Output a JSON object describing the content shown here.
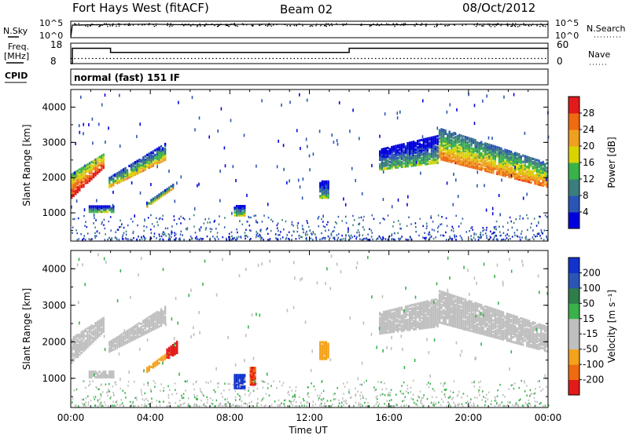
{
  "header": {
    "station": "Fort Hays West (fitACF)",
    "beam": "Beam 02",
    "date": "08/Oct/2012"
  },
  "side_labels": {
    "nsky": "N.Sky",
    "nsearch": "N.Search",
    "freq_line1": "Freq.",
    "freq_line2": "[MHz]",
    "nave": "Nave",
    "cpid": "CPID",
    "mode": "normal (fast) 151 IF"
  },
  "colors": {
    "axis": "#000000",
    "power_scale": [
      "#0000dd",
      "#2a55b4",
      "#3c7d7d",
      "#39b24a",
      "#d9d400",
      "#f0a020",
      "#ef6a10",
      "#e31a1a"
    ],
    "velocity_scale": [
      "#e31a1a",
      "#ef6a10",
      "#f5a21b",
      "#bfbfbf",
      "#bfbfbf",
      "#39b24a",
      "#2e7d4a",
      "#2a55b4",
      "#1133cc"
    ]
  },
  "chart_data": [
    {
      "type": "line",
      "name": "nsky-nsearch",
      "x_unit": "hours UT",
      "ylabel_left": "N.Sky",
      "ylabel_right": "N.Search",
      "yticks_left": [
        "10^5",
        "10^0"
      ],
      "yticks_right": [
        "10^5",
        "10^0"
      ],
      "series": [
        {
          "name": "N.Sky",
          "x": [
            0,
            0.08,
            1,
            2,
            4,
            6,
            8,
            10,
            12,
            14,
            16,
            18,
            20,
            22,
            24
          ],
          "y": [
            0,
            3.8,
            3.9,
            4.0,
            4.1,
            3.9,
            4.0,
            4.1,
            4.0,
            4.0,
            3.9,
            4.0,
            4.1,
            4.0,
            4.0
          ]
        }
      ]
    },
    {
      "type": "line",
      "name": "freq-nave",
      "x_unit": "hours UT",
      "ylabel_left": "Freq. [MHz]",
      "ylabel_right": "Nave",
      "yticks_left": [
        "18",
        "8"
      ],
      "yticks_right": [
        "60",
        "0"
      ],
      "series": [
        {
          "name": "Freq.",
          "x": [
            0,
            0.08,
            0.08,
            2.0,
            2.0,
            14.0,
            14.0,
            24
          ],
          "y": [
            8,
            8,
            15.5,
            15.5,
            13.5,
            13.5,
            15.5,
            15.5
          ]
        },
        {
          "name": "Nave",
          "x": [
            0,
            24
          ],
          "y": [
            15,
            15
          ]
        }
      ]
    },
    {
      "type": "heatmap",
      "name": "power",
      "ylabel": "Slant Range [km]",
      "yticks": [
        "1000",
        "2000",
        "3000",
        "4000"
      ],
      "ylim": [
        200,
        4500
      ],
      "colorbar_label": "Power [dB]",
      "colorbar_ticks": [
        "4",
        "8",
        "12",
        "16",
        "20",
        "24",
        "28"
      ],
      "colorbar_range": [
        0,
        32
      ],
      "bands": [
        {
          "x": [
            0,
            1.7
          ],
          "r0": [
            1400,
            2300
          ],
          "r1": [
            2100,
            2700
          ],
          "value": 22
        },
        {
          "x": [
            1.9,
            4.8
          ],
          "r0": [
            1700,
            2500
          ],
          "r1": [
            2000,
            3000
          ],
          "value": 12
        },
        {
          "x": [
            3.8,
            5.2
          ],
          "r0": [
            1150,
            1700
          ],
          "r1": [
            1300,
            1850
          ],
          "value": 10
        },
        {
          "x": [
            0.9,
            2.2
          ],
          "r0": [
            1000,
            1000
          ],
          "r1": [
            1200,
            1200
          ],
          "value": 6
        },
        {
          "x": [
            8.2,
            8.8
          ],
          "r0": [
            900,
            900
          ],
          "r1": [
            1200,
            1200
          ],
          "value": 8
        },
        {
          "x": [
            12.5,
            13.0
          ],
          "r0": [
            1400,
            1400
          ],
          "r1": [
            1900,
            1900
          ],
          "value": 6
        },
        {
          "x": [
            18.5,
            24
          ],
          "r0": [
            2500,
            1700
          ],
          "r1": [
            3400,
            2400
          ],
          "value": 16
        },
        {
          "x": [
            15.5,
            18.5
          ],
          "r0": [
            2200,
            2400
          ],
          "r1": [
            2800,
            3200
          ],
          "value": 6
        }
      ]
    },
    {
      "type": "heatmap",
      "name": "velocity",
      "ylabel": "Slant Range [km]",
      "yticks": [
        "1000",
        "2000",
        "3000",
        "4000"
      ],
      "ylim": [
        200,
        4500
      ],
      "colorbar_label": "Velocity [m s⁻¹]",
      "colorbar_ticks": [
        "-200",
        "-100",
        "-50",
        "-15",
        "15",
        "50",
        "100",
        "200"
      ],
      "colorbar_range": [
        -250,
        250
      ],
      "bands": [
        {
          "x": [
            0,
            1.7
          ],
          "r0": [
            1400,
            2300
          ],
          "r1": [
            2100,
            2700
          ],
          "value": 0
        },
        {
          "x": [
            1.9,
            4.8
          ],
          "r0": [
            1700,
            2500
          ],
          "r1": [
            2000,
            3000
          ],
          "value": 0
        },
        {
          "x": [
            3.8,
            5.2
          ],
          "r0": [
            1150,
            1700
          ],
          "r1": [
            1300,
            1850
          ],
          "value": -60
        },
        {
          "x": [
            4.8,
            5.4
          ],
          "r0": [
            1500,
            1700
          ],
          "r1": [
            1800,
            2050
          ],
          "value": -220
        },
        {
          "x": [
            0.9,
            2.2
          ],
          "r0": [
            1000,
            1000
          ],
          "r1": [
            1200,
            1200
          ],
          "value": 0
        },
        {
          "x": [
            8.2,
            8.8
          ],
          "r0": [
            700,
            700
          ],
          "r1": [
            1100,
            1100
          ],
          "value": 220
        },
        {
          "x": [
            9.0,
            9.3
          ],
          "r0": [
            800,
            800
          ],
          "r1": [
            1300,
            1300
          ],
          "value": -200
        },
        {
          "x": [
            12.5,
            13.0
          ],
          "r0": [
            1500,
            1500
          ],
          "r1": [
            2000,
            2000
          ],
          "value": -70
        },
        {
          "x": [
            18.5,
            24
          ],
          "r0": [
            2500,
            1700
          ],
          "r1": [
            3400,
            2400
          ],
          "value": 0
        },
        {
          "x": [
            15.5,
            18.5
          ],
          "r0": [
            2200,
            2400
          ],
          "r1": [
            2800,
            3200
          ],
          "value": 0
        }
      ]
    }
  ],
  "x_axis": {
    "label": "Time UT",
    "range": [
      0,
      24
    ],
    "ticks": [
      "00:00",
      "04:00",
      "08:00",
      "12:00",
      "16:00",
      "20:00",
      "00:00"
    ]
  }
}
